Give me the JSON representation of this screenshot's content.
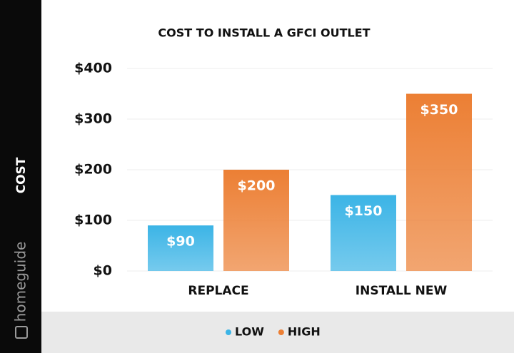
{
  "brand": "homeguide",
  "chart_data": {
    "type": "bar",
    "title": "COST TO INSTALL A GFCI OUTLET",
    "ylabel": "COST",
    "categories": [
      "REPLACE",
      "INSTALL NEW"
    ],
    "series": [
      {
        "name": "LOW",
        "color": "#3bb4e6",
        "values": [
          90,
          150
        ],
        "value_labels": [
          "$90",
          "$150"
        ]
      },
      {
        "name": "HIGH",
        "color": "#ec7f34",
        "values": [
          200,
          350
        ],
        "value_labels": [
          "$200",
          "$350"
        ]
      }
    ],
    "ylim": [
      0,
      400
    ],
    "yticks": [
      {
        "value": 0,
        "label": "$0"
      },
      {
        "value": 100,
        "label": "$100"
      },
      {
        "value": 200,
        "label": "$200"
      },
      {
        "value": 300,
        "label": "$300"
      },
      {
        "value": 400,
        "label": "$400"
      }
    ],
    "grid": true,
    "legend": "bottom"
  }
}
